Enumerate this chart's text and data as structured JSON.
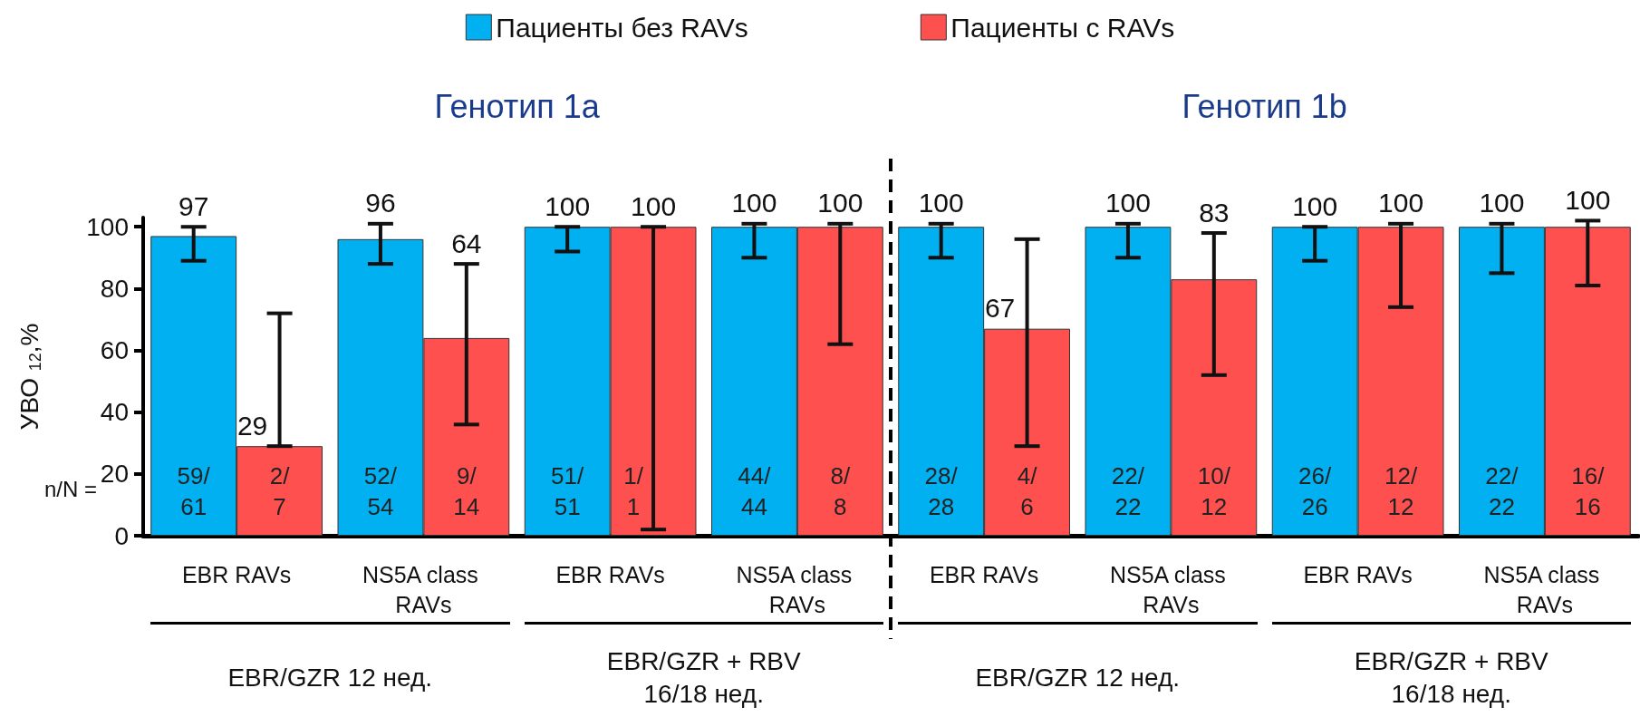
{
  "chart_data": {
    "type": "bar",
    "ylabel": "УВО $_{12}$,%",
    "categories": [
      "EBR RAVs",
      "NS5A class RAVs",
      "EBR RAVs",
      "NS5A class RAVs",
      "EBR RAVs",
      "NS5A class RAVs",
      "EBR RAVs",
      "NS5A class RAVs"
    ],
    "series": [
      {
        "name": "Пациенты без RAVs",
        "color": "#00b0f0",
        "values": [
          97,
          96,
          100,
          100,
          100,
          100,
          100,
          100
        ],
        "errors": [
          [
            89,
            100
          ],
          [
            88,
            101
          ],
          [
            92,
            100
          ],
          [
            90,
            101
          ],
          [
            90,
            101
          ],
          [
            90,
            101
          ],
          [
            89,
            100
          ],
          [
            85,
            101
          ]
        ]
      },
      {
        "name": "Пациенты с RAVs",
        "color": "#ff5050",
        "values": [
          29,
          64,
          100,
          100,
          67,
          83,
          100,
          100
        ],
        "errors": [
          [
            29,
            72
          ],
          [
            36,
            88
          ],
          [
            2,
            100
          ],
          [
            62,
            101
          ],
          [
            29,
            96
          ],
          [
            52,
            98
          ],
          [
            74,
            101
          ],
          [
            81,
            102
          ]
        ]
      }
    ],
    "ylim": [
      0,
      103
    ],
    "yticks": [
      0,
      20,
      40,
      60,
      80,
      100
    ],
    "grid": false,
    "legend": "top",
    "data_labels": true,
    "annotations": [
      "Генотип 1a",
      "Генотип 1b",
      "n/N =",
      "EBR/GZR 12 нед.",
      "EBR/GZR + RBV 16/18 нед.",
      "EBR/GZR 12 нед.",
      "EBR/GZR + RBV 16/18 нед.",
      "59/61",
      "2/7",
      "52/54",
      "9/14",
      "51/51",
      "1/1",
      "44/44",
      "8/8",
      "28/28",
      "4/6",
      "22/22",
      "10/12",
      "26/26",
      "12/12",
      "22/22",
      "16/16"
    ]
  }
}
